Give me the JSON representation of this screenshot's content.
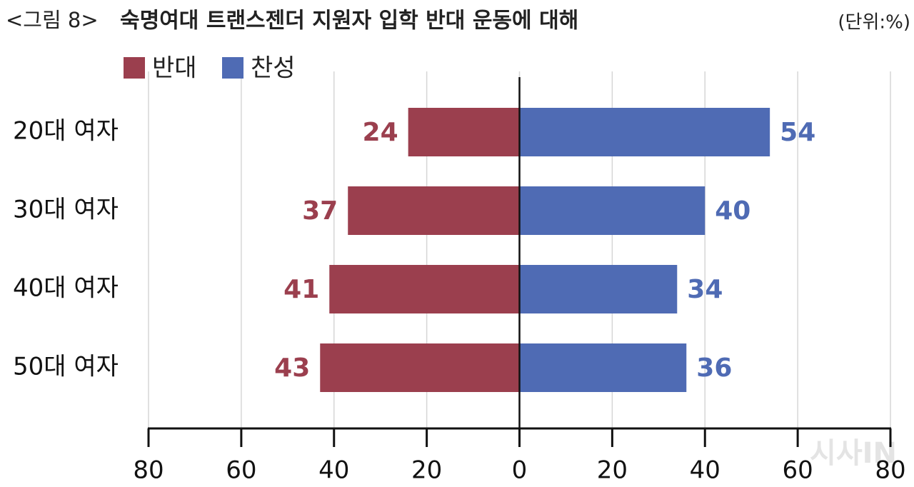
{
  "chart_data": {
    "type": "diverging_bar",
    "figure_label": "<그림 8>",
    "title": "숙명여대 트랜스젠더 지원자 입학 반대 운동에 대해",
    "unit": "(단위:%)",
    "categories": [
      "20대 여자",
      "30대 여자",
      "40대 여자",
      "50대 여자"
    ],
    "series": [
      {
        "name": "반대",
        "color": "#9b3f4e",
        "side": "left",
        "values": [
          24,
          37,
          41,
          43
        ]
      },
      {
        "name": "찬성",
        "color": "#4f6bb4",
        "side": "right",
        "values": [
          54,
          40,
          34,
          36
        ]
      }
    ],
    "xlim": [
      -80,
      80
    ],
    "xticks": [
      {
        "value": -80,
        "label": "80"
      },
      {
        "value": -60,
        "label": "60"
      },
      {
        "value": -40,
        "label": "40"
      },
      {
        "value": -20,
        "label": "20"
      },
      0,
      20,
      40,
      60,
      80
    ],
    "grid": true,
    "watermark": "시사IN"
  }
}
